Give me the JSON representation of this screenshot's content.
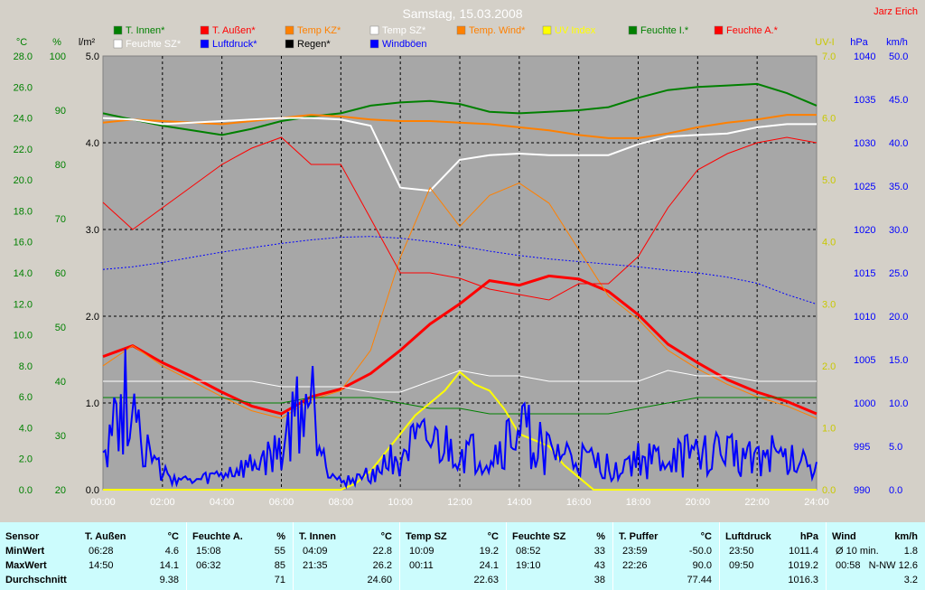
{
  "header": {
    "title": "Samstag, 15.03.2008",
    "author": "Jarz Erich"
  },
  "legend": [
    {
      "label": "T. Innen*",
      "color": "#008000"
    },
    {
      "label": "T. Außen*",
      "color": "#ff0000"
    },
    {
      "label": "Temp KZ*",
      "color": "#ff8000"
    },
    {
      "label": "Temp SZ*",
      "color": "#ffffff"
    },
    {
      "label": "Temp. Wind*",
      "color": "#ff8000"
    },
    {
      "label": "UV Index",
      "color": "#ffff00"
    },
    {
      "label": "Feuchte I.*",
      "color": "#008000"
    },
    {
      "label": "Feuchte A.*",
      "color": "#ff0000"
    },
    {
      "label": "Feuchte SZ*",
      "color": "#ffffff"
    },
    {
      "label": "Luftdruck*",
      "color": "#0000ff"
    },
    {
      "label": "Regen*",
      "color": "#000000"
    },
    {
      "label": "Windböen",
      "color": "#0000ff"
    }
  ],
  "axes": {
    "temp_unit": "°C",
    "hum_unit": "%",
    "rain_unit": "l/m²",
    "uv_unit": "UV-I",
    "press_unit": "hPa",
    "wind_unit": "km/h",
    "temp_ticks": [
      "28.0",
      "26.0",
      "24.0",
      "22.0",
      "20.0",
      "18.0",
      "16.0",
      "14.0",
      "12.0",
      "10.0",
      "8.0",
      "6.0",
      "4.0",
      "2.0",
      "0.0"
    ],
    "hum_ticks": [
      "100",
      "90",
      "80",
      "70",
      "60",
      "50",
      "40",
      "30",
      "20"
    ],
    "rain_ticks": [
      "5.0",
      "4.0",
      "3.0",
      "2.0",
      "1.0",
      "0.0"
    ],
    "uv_ticks": [
      "7.0",
      "6.0",
      "5.0",
      "4.0",
      "3.0",
      "2.0",
      "1.0",
      "0.0"
    ],
    "press_ticks": [
      "1040",
      "1035",
      "1030",
      "1025",
      "1020",
      "1015",
      "1010",
      "1005",
      "1000",
      "995",
      "990"
    ],
    "wind_ticks": [
      "50.0",
      "45.0",
      "40.0",
      "35.0",
      "30.0",
      "25.0",
      "20.0",
      "15.0",
      "10.0",
      "5.0",
      "0.0"
    ],
    "time_ticks": [
      "00:00",
      "02:00",
      "04:00",
      "06:00",
      "08:00",
      "10:00",
      "12:00",
      "14:00",
      "16:00",
      "18:00",
      "20:00",
      "22:00",
      "24:00"
    ]
  },
  "chart_data": {
    "type": "line",
    "x_unit": "hour of day",
    "ylim_temp": [
      0,
      28
    ],
    "ylim_hum": [
      20,
      100
    ],
    "ylim_uv": [
      0,
      7
    ],
    "ylim_press": [
      990,
      1040
    ],
    "ylim_wind": [
      0,
      50
    ],
    "grid": true,
    "series": [
      {
        "name": "T. Innen*",
        "axis": "temp",
        "color": "#008000",
        "width": 2,
        "x": [
          0,
          1,
          2,
          3,
          4,
          5,
          6,
          7,
          8,
          9,
          10,
          11,
          12,
          13,
          14,
          15,
          16,
          17,
          18,
          19,
          20,
          21,
          22,
          23,
          24
        ],
        "y": [
          24.3,
          23.9,
          23.5,
          23.2,
          22.9,
          23.3,
          23.8,
          24.1,
          24.3,
          24.8,
          25.0,
          25.1,
          24.9,
          24.4,
          24.3,
          24.4,
          24.5,
          24.7,
          25.3,
          25.8,
          26.0,
          26.1,
          26.2,
          25.6,
          24.8
        ]
      },
      {
        "name": "T. Außen*",
        "axis": "temp",
        "color": "#ff0000",
        "width": 3,
        "x": [
          0,
          1,
          2,
          3,
          4,
          5,
          6,
          7,
          8,
          9,
          10,
          11,
          12,
          13,
          14,
          15,
          16,
          17,
          18,
          19,
          20,
          21,
          22,
          23,
          24
        ],
        "y": [
          8.6,
          9.3,
          8.2,
          7.3,
          6.3,
          5.4,
          4.9,
          6.0,
          6.5,
          7.5,
          9.0,
          10.7,
          12.0,
          13.5,
          13.2,
          13.8,
          13.6,
          12.8,
          11.3,
          9.4,
          8.2,
          7.1,
          6.3,
          5.7,
          4.9
        ]
      },
      {
        "name": "Temp KZ*",
        "axis": "temp",
        "color": "#ff8000",
        "width": 2,
        "x": [
          0,
          1,
          2,
          3,
          4,
          5,
          6,
          7,
          8,
          9,
          10,
          11,
          12,
          13,
          14,
          15,
          16,
          17,
          18,
          19,
          20,
          21,
          22,
          23,
          24
        ],
        "y": [
          23.7,
          23.9,
          23.8,
          23.7,
          23.6,
          23.8,
          24.0,
          24.2,
          24.1,
          23.9,
          23.8,
          23.8,
          23.7,
          23.6,
          23.4,
          23.2,
          22.9,
          22.7,
          22.7,
          23.0,
          23.4,
          23.7,
          23.9,
          24.2,
          24.2
        ]
      },
      {
        "name": "Temp SZ*",
        "axis": "temp",
        "color": "#ffffff",
        "width": 2,
        "x": [
          0,
          1,
          2,
          3,
          4,
          5,
          6,
          7,
          8,
          9,
          10,
          11,
          12,
          13,
          14,
          15,
          16,
          17,
          18,
          19,
          20,
          21,
          22,
          23,
          24
        ],
        "y": [
          24.0,
          23.9,
          23.6,
          23.7,
          23.8,
          23.9,
          24.0,
          24.0,
          23.9,
          23.5,
          19.5,
          19.3,
          21.3,
          21.6,
          21.7,
          21.6,
          21.6,
          21.6,
          22.3,
          22.8,
          22.9,
          23.0,
          23.4,
          23.6,
          23.6
        ]
      },
      {
        "name": "Temp. Wind*",
        "axis": "temp",
        "color": "#ff8000",
        "width": 1,
        "x": [
          0,
          1,
          2,
          3,
          4,
          5,
          6,
          7,
          8,
          9,
          10,
          11,
          12,
          13,
          14,
          15,
          16,
          17,
          18,
          19,
          20,
          21,
          22,
          23,
          24
        ],
        "y": [
          8.0,
          9.3,
          8.0,
          7.0,
          6.0,
          5.1,
          4.6,
          5.8,
          6.4,
          9.0,
          15.0,
          19.5,
          17.0,
          19.0,
          19.8,
          18.5,
          15.5,
          12.5,
          11.0,
          9.0,
          7.8,
          6.8,
          6.0,
          5.4,
          4.6
        ]
      },
      {
        "name": "Feuchte I.*",
        "axis": "hum",
        "color": "#008000",
        "width": 1,
        "x": [
          0,
          1,
          2,
          3,
          4,
          5,
          6,
          7,
          8,
          9,
          10,
          11,
          12,
          13,
          14,
          15,
          16,
          17,
          18,
          19,
          20,
          21,
          22,
          23,
          24
        ],
        "y": [
          37,
          37,
          37,
          37,
          37,
          36,
          36,
          37,
          37,
          37,
          36,
          35,
          35,
          34,
          34,
          34,
          34,
          34,
          35,
          36,
          37,
          37,
          37,
          37,
          37
        ]
      },
      {
        "name": "Feuchte A.*",
        "axis": "hum",
        "color": "#ff0000",
        "width": 1,
        "x": [
          0,
          1,
          2,
          3,
          4,
          5,
          6,
          7,
          8,
          9,
          10,
          11,
          12,
          13,
          14,
          15,
          16,
          17,
          18,
          19,
          20,
          21,
          22,
          23,
          24
        ],
        "y": [
          73,
          68,
          72,
          76,
          80,
          83,
          85,
          80,
          80,
          70,
          60,
          60,
          59,
          57,
          56,
          55,
          58,
          58,
          63,
          72,
          79,
          82,
          84,
          85,
          84
        ]
      },
      {
        "name": "Feuchte SZ*",
        "axis": "hum",
        "color": "#ffffff",
        "width": 1,
        "x": [
          0,
          1,
          2,
          3,
          4,
          5,
          6,
          7,
          8,
          9,
          10,
          11,
          12,
          13,
          14,
          15,
          16,
          17,
          18,
          19,
          20,
          21,
          22,
          23,
          24
        ],
        "y": [
          40,
          40,
          40,
          40,
          40,
          40,
          39,
          39,
          39,
          38,
          38,
          40,
          42,
          41,
          41,
          40,
          40,
          40,
          40,
          42,
          41,
          41,
          40,
          40,
          40
        ]
      },
      {
        "name": "Luftdruck*",
        "axis": "press",
        "color": "#0000ff",
        "width": 1,
        "dash": true,
        "x": [
          0,
          1,
          2,
          3,
          4,
          5,
          6,
          7,
          8,
          9,
          10,
          11,
          12,
          13,
          14,
          15,
          16,
          17,
          18,
          19,
          20,
          21,
          22,
          23,
          24
        ],
        "y": [
          1015.4,
          1015.7,
          1016.2,
          1016.8,
          1017.4,
          1017.9,
          1018.4,
          1018.8,
          1019.1,
          1019.2,
          1019.0,
          1018.6,
          1018.1,
          1017.5,
          1017.0,
          1016.6,
          1016.3,
          1016.0,
          1015.7,
          1015.3,
          1015.0,
          1014.5,
          1013.8,
          1012.5,
          1011.4
        ]
      },
      {
        "name": "UV Index",
        "axis": "uv",
        "color": "#ffff00",
        "width": 2,
        "x": [
          0,
          8,
          8.5,
          9,
          9.5,
          10,
          10.5,
          11,
          11.5,
          12,
          12.5,
          13,
          13.5,
          14,
          14.5,
          15,
          15.5,
          16,
          16.5,
          24
        ],
        "y": [
          0,
          0,
          0.1,
          0.3,
          0.6,
          0.9,
          1.2,
          1.4,
          1.6,
          1.9,
          1.7,
          1.6,
          1.3,
          0.9,
          0.8,
          0.7,
          0.4,
          0.2,
          0,
          0
        ]
      },
      {
        "name": "Windböen",
        "axis": "wind",
        "color": "#0000ff",
        "width": 2,
        "noise": true,
        "x": [
          0,
          0.5,
          1,
          1.5,
          2,
          3,
          4,
          5,
          6,
          6.5,
          7,
          7.5,
          8,
          9,
          10,
          11,
          12,
          13,
          14,
          15,
          16,
          17,
          18,
          19,
          20,
          21,
          22,
          23,
          24
        ],
        "y": [
          7,
          10,
          14,
          5,
          2,
          1,
          2,
          3,
          5,
          10,
          12,
          4,
          1,
          2,
          5,
          6,
          5,
          4,
          8,
          5,
          4,
          3,
          4,
          4,
          5,
          5,
          5,
          4,
          4
        ]
      }
    ]
  },
  "stats": {
    "sensor_label": "Sensor",
    "min_label": "MinWert",
    "max_label": "MaxWert",
    "avg_label": "Durchschnitt",
    "columns": [
      {
        "title": "T. Außen",
        "unit": "°C",
        "min_time": "06:28",
        "min_val": "4.6",
        "max_time": "14:50",
        "max_val": "14.1",
        "avg": "9.38"
      },
      {
        "title": "Feuchte A.",
        "unit": "%",
        "min_time": "15:08",
        "min_val": "55",
        "max_time": "06:32",
        "max_val": "85",
        "avg": "71"
      },
      {
        "title": "T. Innen",
        "unit": "°C",
        "min_time": "04:09",
        "min_val": "22.8",
        "max_time": "21:35",
        "max_val": "26.2",
        "avg": "24.60"
      },
      {
        "title": "Temp SZ",
        "unit": "°C",
        "min_time": "10:09",
        "min_val": "19.2",
        "max_time": "00:11",
        "max_val": "24.1",
        "avg": "22.63"
      },
      {
        "title": "Feuchte SZ",
        "unit": "%",
        "min_time": "08:52",
        "min_val": "33",
        "max_time": "19:10",
        "max_val": "43",
        "avg": "38"
      },
      {
        "title": "T. Puffer",
        "unit": "°C",
        "min_time": "23:59",
        "min_val": "-50.0",
        "max_time": "22:26",
        "max_val": "90.0",
        "avg": "77.44"
      },
      {
        "title": "Luftdruck",
        "unit": "hPa",
        "min_time": "23:50",
        "min_val": "1011.4",
        "max_time": "09:50",
        "max_val": "1019.2",
        "avg": "1016.3"
      },
      {
        "title": "Wind",
        "unit": "km/h",
        "min_time": "Ø 10 min.",
        "min_val": "1.8",
        "max_time": "00:58",
        "max_val": "N-NW 12.6",
        "avg": "3.2"
      }
    ]
  }
}
